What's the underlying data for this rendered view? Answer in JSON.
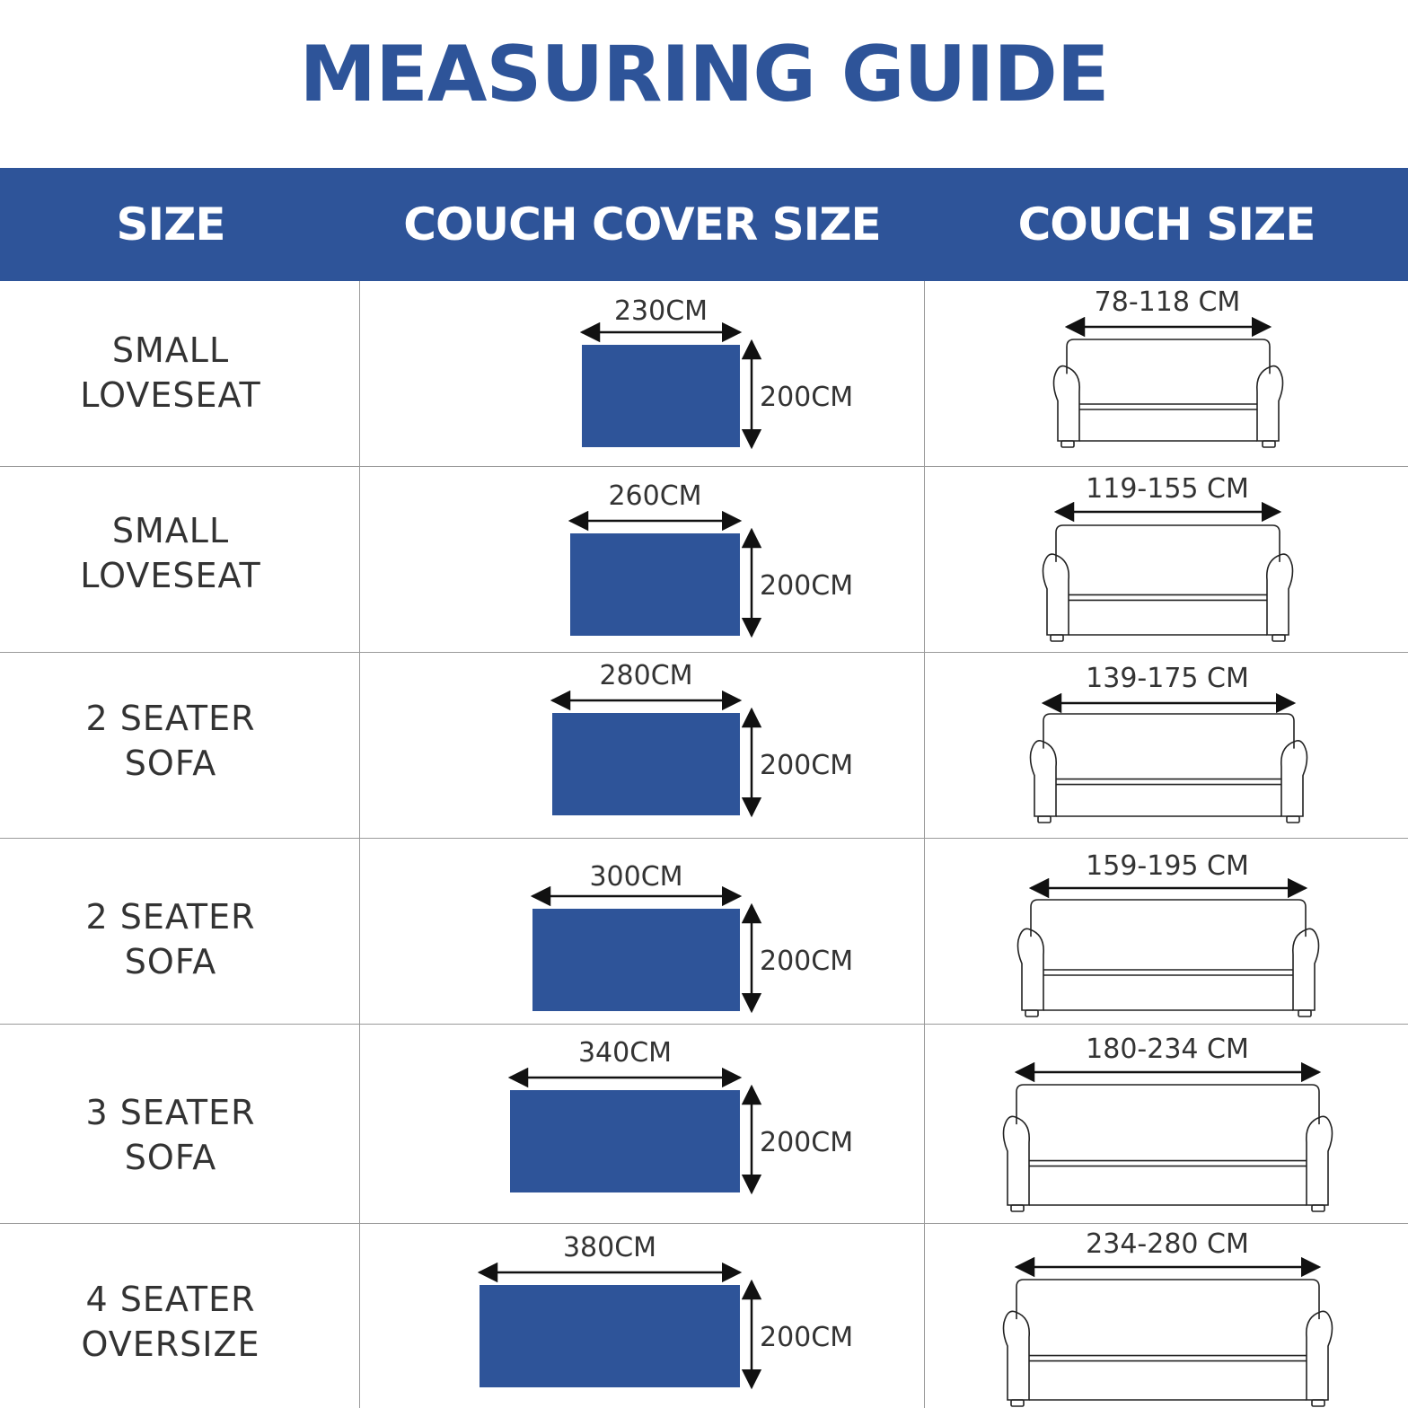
{
  "title": "MEASURING GUIDE",
  "colors": {
    "brand_blue": "#2e5499",
    "text": "#333333",
    "grid": "#9a9a9a"
  },
  "headers": {
    "size": "SIZE",
    "cover": "COUCH COVER SIZE",
    "couch": "COUCH SIZE"
  },
  "rows": [
    {
      "size_line1": "SMALL",
      "size_line2": "LOVESEAT",
      "cover_width": "230CM",
      "cover_height": "200CM",
      "couch_size": "78-118 CM"
    },
    {
      "size_line1": "SMALL",
      "size_line2": "LOVESEAT",
      "cover_width": "260CM",
      "cover_height": "200CM",
      "couch_size": "119-155 CM"
    },
    {
      "size_line1": "2 SEATER",
      "size_line2": "SOFA",
      "cover_width": "280CM",
      "cover_height": "200CM",
      "couch_size": "139-175 CM"
    },
    {
      "size_line1": "2 SEATER",
      "size_line2": "SOFA",
      "cover_width": "300CM",
      "cover_height": "200CM",
      "couch_size": "159-195 CM"
    },
    {
      "size_line1": "3 SEATER",
      "size_line2": "SOFA",
      "cover_width": "340CM",
      "cover_height": "200CM",
      "couch_size": "180-234 CM"
    },
    {
      "size_line1": "4 SEATER",
      "size_line2": "OVERSIZE",
      "cover_width": "380CM",
      "cover_height": "200CM",
      "couch_size": "234-280 CM"
    }
  ]
}
